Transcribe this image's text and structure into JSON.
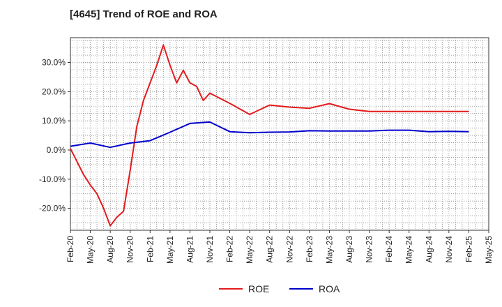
{
  "chart_data": {
    "type": "line",
    "title": "[4645]  Trend of ROE and ROA",
    "xlabel": "",
    "ylabel": "",
    "x_ticks": [
      "Feb-20",
      "May-20",
      "Aug-20",
      "Nov-20",
      "Feb-21",
      "May-21",
      "Aug-21",
      "Nov-21",
      "Feb-22",
      "May-22",
      "Aug-22",
      "Nov-22",
      "Feb-23",
      "May-23",
      "Aug-23",
      "Nov-23",
      "Feb-24",
      "May-24",
      "Aug-24",
      "Nov-24",
      "Feb-25",
      "May-25"
    ],
    "y_ticks": [
      {
        "value": 30,
        "label": "30.0%"
      },
      {
        "value": 20,
        "label": "20.0%"
      },
      {
        "value": 10,
        "label": "10.0%"
      },
      {
        "value": 0,
        "label": "0.0%"
      },
      {
        "value": -10,
        "label": "-10.0%"
      },
      {
        "value": -20,
        "label": "-20.0%"
      }
    ],
    "ylim": [
      -27.5,
      38.5
    ],
    "x_month_range": [
      0,
      63
    ],
    "grid": true,
    "legend_position": "bottom",
    "series": [
      {
        "name": "ROE",
        "color": "#e31a1c",
        "x": [
          0,
          1,
          2,
          3,
          4,
          5,
          6,
          7,
          8,
          9,
          10,
          11,
          12,
          13,
          14,
          15,
          16,
          17,
          18,
          19,
          20,
          21,
          24,
          27,
          30,
          33,
          36,
          39,
          42,
          45,
          48,
          51,
          54,
          57,
          60
        ],
        "values": [
          0.5,
          -4,
          -8.5,
          -12,
          -15,
          -20,
          -26,
          -23,
          -21,
          -7,
          8,
          17,
          23,
          29,
          36,
          29,
          23,
          27.3,
          23,
          21.8,
          17,
          19.5,
          16,
          12.2,
          15.4,
          14.7,
          14.3,
          15.9,
          14.0,
          13.2,
          13.2,
          13.2,
          13.2,
          13.2,
          13.2
        ]
      },
      {
        "name": "ROA",
        "color": "#0000cc",
        "x": [
          0,
          3,
          6,
          9,
          12,
          15,
          18,
          21,
          24,
          27,
          30,
          33,
          36,
          39,
          42,
          45,
          48,
          51,
          54,
          57,
          60
        ],
        "values": [
          1.3,
          2.4,
          0.9,
          2.4,
          3.2,
          6.1,
          9.1,
          9.6,
          6.3,
          5.9,
          6.1,
          6.2,
          6.6,
          6.5,
          6.5,
          6.5,
          6.8,
          6.8,
          6.3,
          6.4,
          6.3
        ]
      }
    ]
  }
}
